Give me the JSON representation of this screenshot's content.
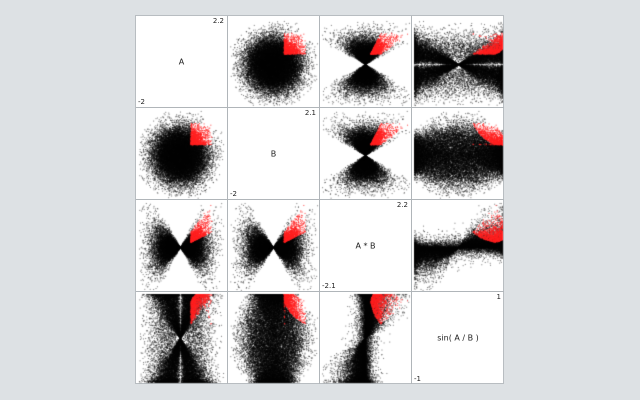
{
  "chart_data": {
    "type": "scatter",
    "variables": [
      {
        "name": "A",
        "min": "-2",
        "max": "2.2"
      },
      {
        "name": "B",
        "min": "-2",
        "max": "2.1"
      },
      {
        "name": "A * B",
        "min": "-2.1",
        "max": "2.2"
      },
      {
        "name": "sin( A / B )",
        "min": "-1",
        "max": "1"
      }
    ],
    "point_colors": {
      "all": "#000000",
      "selected": "#ff2020"
    },
    "selection": {
      "A": [
        0.5,
        1.5
      ],
      "B": [
        0.5,
        1.5
      ]
    },
    "grid": false,
    "legend": "none"
  }
}
